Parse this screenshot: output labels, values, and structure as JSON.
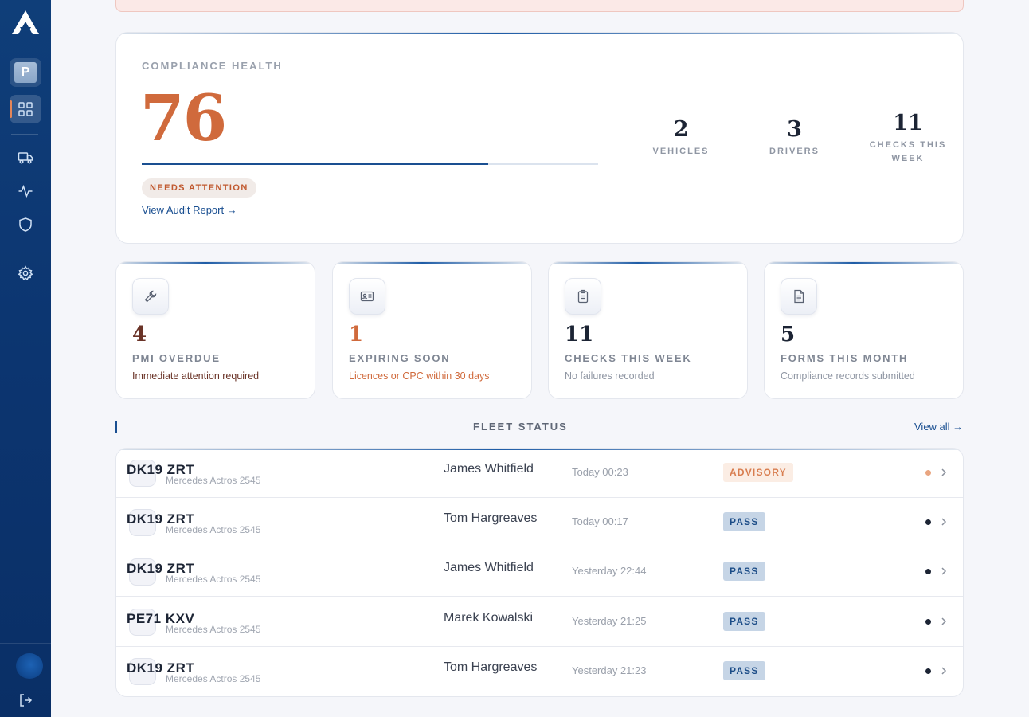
{
  "sidebar": {
    "logo": "A",
    "profile_initial": "P",
    "items": [
      {
        "name": "profile",
        "icon": "profile-badge"
      },
      {
        "name": "dashboard",
        "icon": "dashboard-grid-icon",
        "active": true
      },
      {
        "name": "vehicles",
        "icon": "truck-icon"
      },
      {
        "name": "activity",
        "icon": "activity-icon"
      },
      {
        "name": "compliance",
        "icon": "shield-icon"
      },
      {
        "name": "settings",
        "icon": "gear-icon"
      }
    ],
    "bottom": {
      "icon": "logout-icon"
    }
  },
  "colors": {
    "sidebar": "#0f3e79",
    "accent_orange": "#d06a3c",
    "primary_blue": "#1a4f91",
    "page_bg": "#f5f6fa"
  },
  "health": {
    "label": "COMPLIANCE HEALTH",
    "score": "76",
    "progress": 0.76,
    "status_badge": "NEEDS ATTENTION",
    "link": "View Audit Report →",
    "stats": [
      {
        "value": "2",
        "label": "VEHICLES"
      },
      {
        "value": "3",
        "label": "DRIVERS"
      },
      {
        "value": "11",
        "label": "CHECKS THIS WEEK"
      }
    ]
  },
  "metrics": [
    {
      "icon": "wrench-icon",
      "value": "4",
      "label": "PMI OVERDUE",
      "sub": "Immediate attention required",
      "value_color": "#6a3327",
      "sub_color": "#6a3327"
    },
    {
      "icon": "id-card-icon",
      "value": "1",
      "label": "EXPIRING SOON",
      "sub": "Licences or CPC within 30 days",
      "value_color": "#d06a3c",
      "sub_color": "#d06a3c"
    },
    {
      "icon": "clipboard-icon",
      "value": "11",
      "label": "CHECKS THIS WEEK",
      "sub": "No failures recorded",
      "value_color": "#1c2434",
      "sub_color": "#8f96a3"
    },
    {
      "icon": "document-icon",
      "value": "5",
      "label": "FORMS THIS MONTH",
      "sub": "Compliance records submitted",
      "value_color": "#1c2434",
      "sub_color": "#8f96a3"
    }
  ],
  "fleet": {
    "title": "FLEET STATUS",
    "view_all": "View all →",
    "rows": [
      {
        "reg": "DK19 ZRT",
        "model": "Mercedes Actros 2545",
        "driver": "James Whitfield",
        "time": "Today 00:23",
        "status": "ADVISORY",
        "status_type": "advisory"
      },
      {
        "reg": "DK19 ZRT",
        "model": "Mercedes Actros 2545",
        "driver": "Tom Hargreaves",
        "time": "Today 00:17",
        "status": "PASS",
        "status_type": "pass"
      },
      {
        "reg": "DK19 ZRT",
        "model": "Mercedes Actros 2545",
        "driver": "James Whitfield",
        "time": "Yesterday 22:44",
        "status": "PASS",
        "status_type": "pass"
      },
      {
        "reg": "PE71 KXV",
        "model": "Mercedes Actros 2545",
        "driver": "Marek Kowalski",
        "time": "Yesterday 21:25",
        "status": "PASS",
        "status_type": "pass"
      },
      {
        "reg": "DK19 ZRT",
        "model": "Mercedes Actros 2545",
        "driver": "Tom Hargreaves",
        "time": "Yesterday 21:23",
        "status": "PASS",
        "status_type": "pass"
      }
    ]
  }
}
